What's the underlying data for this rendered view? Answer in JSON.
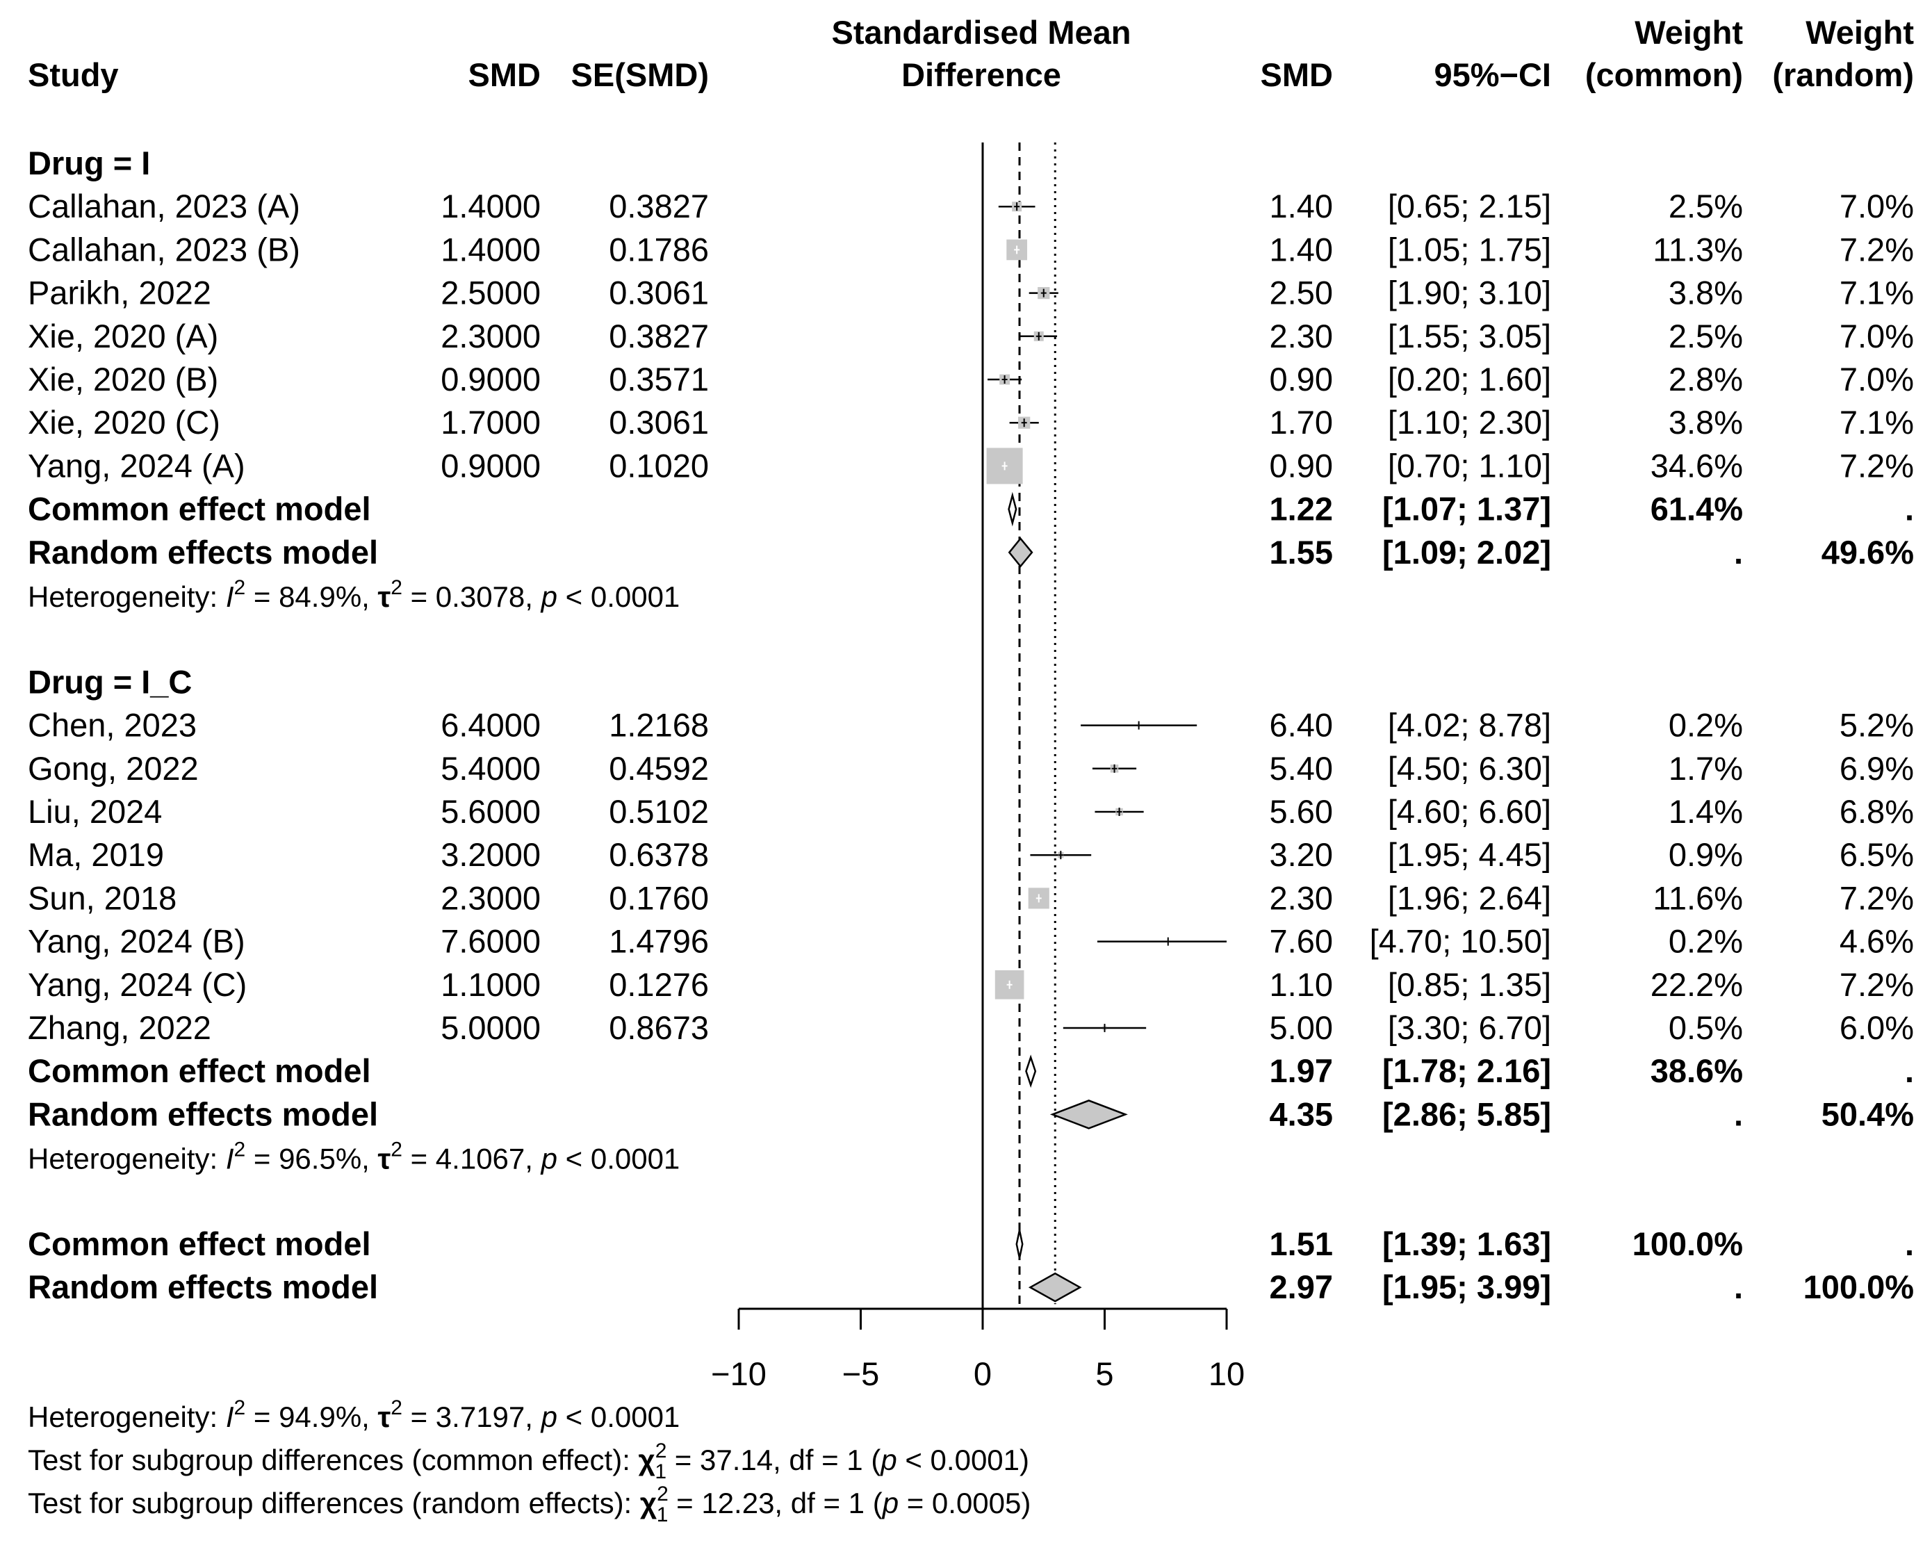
{
  "chart_data": {
    "type": "forest",
    "headers": {
      "study": "Study",
      "smd": "SMD",
      "se": "SE(SMD)",
      "plot_title_1": "Standardised Mean",
      "plot_title_2": "Difference",
      "smd_right": "SMD",
      "ci": "95%−CI",
      "wc_1": "Weight",
      "wc_2": "(common)",
      "wr_1": "Weight",
      "wr_2": "(random)"
    },
    "xlim": [
      -10,
      10
    ],
    "ticks": [
      -10,
      -5,
      0,
      5,
      10
    ],
    "tick_labels": [
      "−10",
      "−5",
      "0",
      "5",
      "10"
    ],
    "common_line": 1.51,
    "random_line": 2.97,
    "groups": [
      {
        "label": "Drug = I",
        "studies": [
          {
            "name": "Callahan, 2023 (A)",
            "smd": 1.4,
            "smd_txt": "1.4000",
            "se_txt": "0.3827",
            "est": "1.40",
            "ci": "[0.65;  2.15]",
            "lo": 0.65,
            "hi": 2.15,
            "wc": "2.5%",
            "wr": "7.0%",
            "w": 2.5
          },
          {
            "name": "Callahan, 2023 (B)",
            "smd": 1.4,
            "smd_txt": "1.4000",
            "se_txt": "0.1786",
            "est": "1.40",
            "ci": "[1.05;  1.75]",
            "lo": 1.05,
            "hi": 1.75,
            "wc": "11.3%",
            "wr": "7.2%",
            "w": 11.3
          },
          {
            "name": "Parikh, 2022",
            "smd": 2.5,
            "smd_txt": "2.5000",
            "se_txt": "0.3061",
            "est": "2.50",
            "ci": "[1.90;  3.10]",
            "lo": 1.9,
            "hi": 3.1,
            "wc": "3.8%",
            "wr": "7.1%",
            "w": 3.8
          },
          {
            "name": "Xie, 2020 (A)",
            "smd": 2.3,
            "smd_txt": "2.3000",
            "se_txt": "0.3827",
            "est": "2.30",
            "ci": "[1.55;  3.05]",
            "lo": 1.55,
            "hi": 3.05,
            "wc": "2.5%",
            "wr": "7.0%",
            "w": 2.5
          },
          {
            "name": "Xie, 2020 (B)",
            "smd": 0.9,
            "smd_txt": "0.9000",
            "se_txt": "0.3571",
            "est": "0.90",
            "ci": "[0.20;  1.60]",
            "lo": 0.2,
            "hi": 1.6,
            "wc": "2.8%",
            "wr": "7.0%",
            "w": 2.8
          },
          {
            "name": "Xie, 2020 (C)",
            "smd": 1.7,
            "smd_txt": "1.7000",
            "se_txt": "0.3061",
            "est": "1.70",
            "ci": "[1.10;  2.30]",
            "lo": 1.1,
            "hi": 2.3,
            "wc": "3.8%",
            "wr": "7.1%",
            "w": 3.8
          },
          {
            "name": "Yang, 2024 (A)",
            "smd": 0.9,
            "smd_txt": "0.9000",
            "se_txt": "0.1020",
            "est": "0.90",
            "ci": "[0.70;  1.10]",
            "lo": 0.7,
            "hi": 1.1,
            "wc": "34.6%",
            "wr": "7.2%",
            "w": 34.6
          }
        ],
        "common": {
          "label": "Common effect model",
          "est": "1.22",
          "ci": "[1.07;  1.37]",
          "wc": "61.4%",
          "wr": ".",
          "val": 1.22,
          "lo": 1.07,
          "hi": 1.37
        },
        "random": {
          "label": "Random effects model",
          "est": "1.55",
          "ci": "[1.09;  2.02]",
          "wc": ".",
          "wr": "49.6%",
          "val": 1.55,
          "lo": 1.09,
          "hi": 2.02
        },
        "het": {
          "prefix": "Heterogeneity: ",
          "i2": "I",
          "sup": "2",
          "i2_val": " = 84.9%, ",
          "tau": "τ",
          "tau_val": " = 0.3078, ",
          "p": "p",
          "p_val": " < 0.0001"
        }
      },
      {
        "label": "Drug = I_C",
        "studies": [
          {
            "name": "Chen, 2023",
            "smd": 6.4,
            "smd_txt": "6.4000",
            "se_txt": "1.2168",
            "est": "6.40",
            "ci": "[4.02;  8.78]",
            "lo": 4.02,
            "hi": 8.78,
            "wc": "0.2%",
            "wr": "5.2%",
            "w": 0.2
          },
          {
            "name": "Gong, 2022",
            "smd": 5.4,
            "smd_txt": "5.4000",
            "se_txt": "0.4592",
            "est": "5.40",
            "ci": "[4.50;  6.30]",
            "lo": 4.5,
            "hi": 6.3,
            "wc": "1.7%",
            "wr": "6.9%",
            "w": 1.7
          },
          {
            "name": "Liu, 2024",
            "smd": 5.6,
            "smd_txt": "5.6000",
            "se_txt": "0.5102",
            "est": "5.60",
            "ci": "[4.60;  6.60]",
            "lo": 4.6,
            "hi": 6.6,
            "wc": "1.4%",
            "wr": "6.8%",
            "w": 1.4
          },
          {
            "name": "Ma, 2019",
            "smd": 3.2,
            "smd_txt": "3.2000",
            "se_txt": "0.6378",
            "est": "3.20",
            "ci": "[1.95;  4.45]",
            "lo": 1.95,
            "hi": 4.45,
            "wc": "0.9%",
            "wr": "6.5%",
            "w": 0.9
          },
          {
            "name": "Sun, 2018",
            "smd": 2.3,
            "smd_txt": "2.3000",
            "se_txt": "0.1760",
            "est": "2.30",
            "ci": "[1.96;  2.64]",
            "lo": 1.96,
            "hi": 2.64,
            "wc": "11.6%",
            "wr": "7.2%",
            "w": 11.6
          },
          {
            "name": "Yang, 2024 (B)",
            "smd": 7.6,
            "smd_txt": "7.6000",
            "se_txt": "1.4796",
            "est": "7.60",
            "ci": "[4.70; 10.50]",
            "lo": 4.7,
            "hi": 10.5,
            "wc": "0.2%",
            "wr": "4.6%",
            "w": 0.2
          },
          {
            "name": "Yang, 2024 (C)",
            "smd": 1.1,
            "smd_txt": "1.1000",
            "se_txt": "0.1276",
            "est": "1.10",
            "ci": "[0.85;  1.35]",
            "lo": 0.85,
            "hi": 1.35,
            "wc": "22.2%",
            "wr": "7.2%",
            "w": 22.2
          },
          {
            "name": "Zhang, 2022",
            "smd": 5.0,
            "smd_txt": "5.0000",
            "se_txt": "0.8673",
            "est": "5.00",
            "ci": "[3.30;  6.70]",
            "lo": 3.3,
            "hi": 6.7,
            "wc": "0.5%",
            "wr": "6.0%",
            "w": 0.5
          }
        ],
        "common": {
          "label": "Common effect model",
          "est": "1.97",
          "ci": "[1.78;  2.16]",
          "wc": "38.6%",
          "wr": ".",
          "val": 1.97,
          "lo": 1.78,
          "hi": 2.16
        },
        "random": {
          "label": "Random effects model",
          "est": "4.35",
          "ci": "[2.86;  5.85]",
          "wc": ".",
          "wr": "50.4%",
          "val": 4.35,
          "lo": 2.86,
          "hi": 5.85
        },
        "het": {
          "prefix": "Heterogeneity: ",
          "i2": "I",
          "sup": "2",
          "i2_val": " = 96.5%, ",
          "tau": "τ",
          "tau_val": " = 4.1067, ",
          "p": "p",
          "p_val": " < 0.0001"
        }
      }
    ],
    "overall": {
      "common": {
        "label": "Common effect model",
        "est": "1.51",
        "ci": "[1.39;  1.63]",
        "wc": "100.0%",
        "wr": ".",
        "val": 1.51,
        "lo": 1.39,
        "hi": 1.63
      },
      "random": {
        "label": "Random effects model",
        "est": "2.97",
        "ci": "[1.95;  3.99]",
        "wc": ".",
        "wr": "100.0%",
        "val": 2.97,
        "lo": 1.95,
        "hi": 3.99
      }
    },
    "footer": {
      "het": {
        "prefix": "Heterogeneity: ",
        "i2": "I",
        "sup": "2",
        "i2_val": " = 94.9%, ",
        "tau": "τ",
        "tau_val": " = 3.7197, ",
        "p": "p",
        "p_val": " < 0.0001"
      },
      "test_common": {
        "prefix": "Test for subgroup differences (common effect): ",
        "chi": "χ",
        "sup": "2",
        "sub": "1",
        "val": " = 37.14, df = 1 (",
        "p": "p",
        "p_val": " < 0.0001)"
      },
      "test_random": {
        "prefix": "Test for subgroup differences (random effects): ",
        "chi": "χ",
        "sup": "2",
        "sub": "1",
        "val": " = 12.23, df = 1 (",
        "p": "p",
        "p_val": " = 0.0005)"
      }
    }
  }
}
